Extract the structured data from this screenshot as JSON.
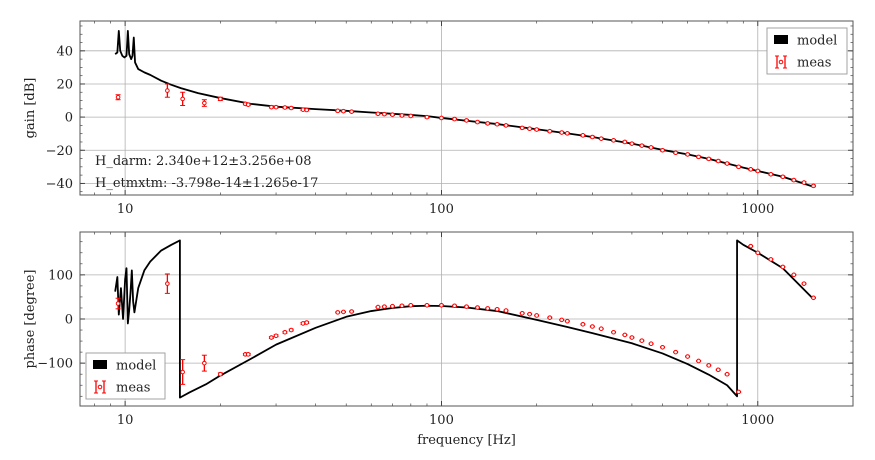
{
  "chart_data": [
    {
      "type": "line",
      "panel": "gain",
      "ylabel": "gain [dB]",
      "xlabel": "",
      "xscale": "log",
      "xlim": [
        7.2,
        2000
      ],
      "ylim": [
        -47,
        58
      ],
      "grid": true,
      "legend_loc": "upper right",
      "xtick_values": [
        10,
        100,
        1000
      ],
      "xtick_labels": [
        "10",
        "100",
        "1000"
      ],
      "ytick_values": [
        -40,
        -20,
        0,
        20,
        40
      ],
      "ytick_labels": [
        "−40",
        "−20",
        "0",
        "20",
        "40"
      ],
      "annotations": [
        "H_darm: 2.340e+12±3.256e+08",
        "H_etmxtm: -3.798e-14±1.265e-17"
      ],
      "series": [
        {
          "name": "model",
          "color": "#000000",
          "x": [
            9.3,
            9.45,
            9.55,
            9.65,
            9.8,
            9.95,
            10.1,
            10.2,
            10.3,
            10.45,
            10.55,
            10.65,
            10.75,
            11.0,
            11.5,
            12,
            13,
            14,
            15,
            17,
            20,
            25,
            30,
            40,
            50,
            60,
            70,
            80,
            90,
            100,
            120,
            150,
            200,
            250,
            300,
            400,
            500,
            600,
            700,
            800,
            900,
            1000,
            1200,
            1500
          ],
          "y": [
            38,
            39,
            52,
            40,
            37,
            36,
            37,
            52,
            38,
            35,
            37,
            48,
            33,
            29,
            27,
            25.5,
            22,
            19.5,
            17.5,
            14.5,
            11.5,
            8,
            6.3,
            4.8,
            3.8,
            2.8,
            2,
            1.3,
            0.6,
            -0.5,
            -2.2,
            -4.2,
            -7.3,
            -9.8,
            -12,
            -16,
            -19.8,
            -22.5,
            -25.2,
            -28,
            -30.5,
            -32.5,
            -36,
            -42
          ]
        },
        {
          "name": "meas",
          "color": "#ff0000",
          "x": [
            9.5,
            13.6,
            15.2,
            17.8,
            20,
            24,
            24.5,
            29,
            30,
            32,
            33.5,
            36.5,
            37.5,
            47,
            49,
            52,
            63,
            66,
            70,
            75,
            80,
            90,
            100,
            110,
            120,
            130,
            140,
            150,
            160,
            180,
            190,
            200,
            220,
            240,
            250,
            280,
            300,
            320,
            350,
            380,
            400,
            430,
            460,
            500,
            550,
            600,
            650,
            700,
            750,
            800,
            870,
            950,
            1000,
            1100,
            1200,
            1300,
            1400,
            1500
          ],
          "y": [
            12,
            16,
            11,
            8.5,
            11,
            8,
            7.5,
            6,
            6,
            5.8,
            5.5,
            4.5,
            4.3,
            3.8,
            3.6,
            3.3,
            2,
            1.8,
            1.5,
            1,
            0.7,
            0,
            -0.5,
            -1.2,
            -2,
            -3,
            -3.8,
            -4.3,
            -5,
            -6.5,
            -7,
            -7.5,
            -8.5,
            -9.3,
            -9.8,
            -11,
            -12,
            -13,
            -14,
            -15,
            -16,
            -17.2,
            -18.3,
            -20,
            -21.5,
            -22.5,
            -24,
            -25.2,
            -26.5,
            -28,
            -30,
            -31.5,
            -32.5,
            -34.5,
            -36,
            -38,
            -39.5,
            -41.5
          ],
          "yerr": [
            1.5,
            4,
            4,
            2,
            1,
            0.6,
            0.6,
            0.5,
            0.5,
            0.5,
            0.5,
            0.5,
            0.5,
            0.5,
            0.5,
            0.5,
            0.5,
            0.5,
            0.5,
            0.5,
            0.5,
            0.5,
            0.5,
            0.5,
            0.5,
            0.5,
            0.5,
            0.5,
            0.5,
            0.5,
            0.5,
            0.5,
            0.5,
            0.5,
            0.5,
            0.5,
            0.5,
            0.5,
            0.5,
            0.5,
            0.5,
            0.5,
            0.5,
            0.5,
            0.5,
            0.5,
            0.5,
            0.5,
            0.5,
            0.5,
            0.5,
            0.5,
            0.5,
            0.5,
            0.5,
            0.5,
            0.5,
            0.5
          ]
        }
      ]
    },
    {
      "type": "line",
      "panel": "phase",
      "ylabel": "phase [degree]",
      "xlabel": "frequency [Hz]",
      "xscale": "log",
      "xlim": [
        7.2,
        2000
      ],
      "ylim": [
        -197,
        197
      ],
      "grid": true,
      "legend_loc": "lower left",
      "xtick_values": [
        10,
        100,
        1000
      ],
      "xtick_labels": [
        "10",
        "100",
        "1000"
      ],
      "ytick_values": [
        -100,
        0,
        100
      ],
      "ytick_labels": [
        "−100",
        "0",
        "100"
      ],
      "annotations": [],
      "series": [
        {
          "name": "model",
          "color": "#000000",
          "x": [
            9.3,
            9.45,
            9.55,
            9.7,
            9.85,
            10.0,
            10.1,
            10.2,
            10.3,
            10.4,
            10.5,
            10.6,
            10.7,
            11.0,
            11.5,
            12,
            13,
            14,
            14.9,
            14.9,
            16,
            18,
            20,
            25,
            30,
            40,
            50,
            60,
            70,
            80,
            90,
            100,
            120,
            150,
            200,
            250,
            300,
            400,
            500,
            600,
            700,
            800,
            860,
            860,
            900,
            1000,
            1200,
            1500
          ],
          "y": [
            62,
            95,
            10,
            70,
            0,
            90,
            115,
            -10,
            20,
            60,
            110,
            40,
            15,
            70,
            110,
            130,
            155,
            168,
            178,
            -178,
            -166,
            -148,
            -128,
            -90,
            -58,
            -20,
            5,
            18,
            25,
            29,
            30,
            29.5,
            26,
            18,
            -2,
            -18,
            -32,
            -55,
            -78,
            -102,
            -126,
            -150,
            -175,
            178,
            168,
            150,
            115,
            45
          ]
        },
        {
          "name": "meas",
          "color": "#ff0000",
          "x": [
            9.5,
            13.6,
            15.2,
            17.8,
            20,
            24,
            24.5,
            29,
            30,
            32,
            33.5,
            36.5,
            37.5,
            47,
            49,
            52,
            63,
            66,
            70,
            75,
            80,
            90,
            100,
            110,
            120,
            130,
            140,
            150,
            160,
            180,
            190,
            200,
            220,
            240,
            250,
            280,
            300,
            320,
            350,
            380,
            400,
            430,
            460,
            500,
            550,
            600,
            650,
            700,
            750,
            800,
            870,
            950,
            1000,
            1100,
            1200,
            1300,
            1400,
            1500
          ],
          "y": [
            35,
            80,
            -120,
            -100,
            -125,
            -80,
            -80,
            -42,
            -38,
            -30,
            -25,
            -10,
            -8,
            15,
            16,
            17,
            27,
            28,
            29,
            30,
            31,
            31,
            31,
            30,
            28,
            26,
            24,
            22,
            19,
            13,
            11,
            8,
            3,
            -2,
            -5,
            -12,
            -17,
            -22,
            -30,
            -36,
            -42,
            -49,
            -56,
            -64,
            -75,
            -85,
            -95,
            -105,
            -115,
            -125,
            -165,
            165,
            150,
            135,
            118,
            100,
            80,
            48
          ],
          "yerr": [
            12,
            22,
            28,
            18,
            3,
            2,
            2,
            2,
            2,
            2,
            2,
            2,
            2,
            1,
            1,
            1,
            1,
            1,
            1,
            1,
            1,
            1,
            1,
            1,
            1,
            1,
            1,
            1,
            1,
            1,
            1,
            1,
            1,
            1,
            1,
            1,
            1,
            1,
            1,
            1,
            1,
            1,
            1,
            1,
            1,
            1,
            1,
            1,
            1,
            1,
            1,
            1,
            1,
            1,
            1,
            1,
            1,
            1
          ]
        }
      ]
    }
  ]
}
